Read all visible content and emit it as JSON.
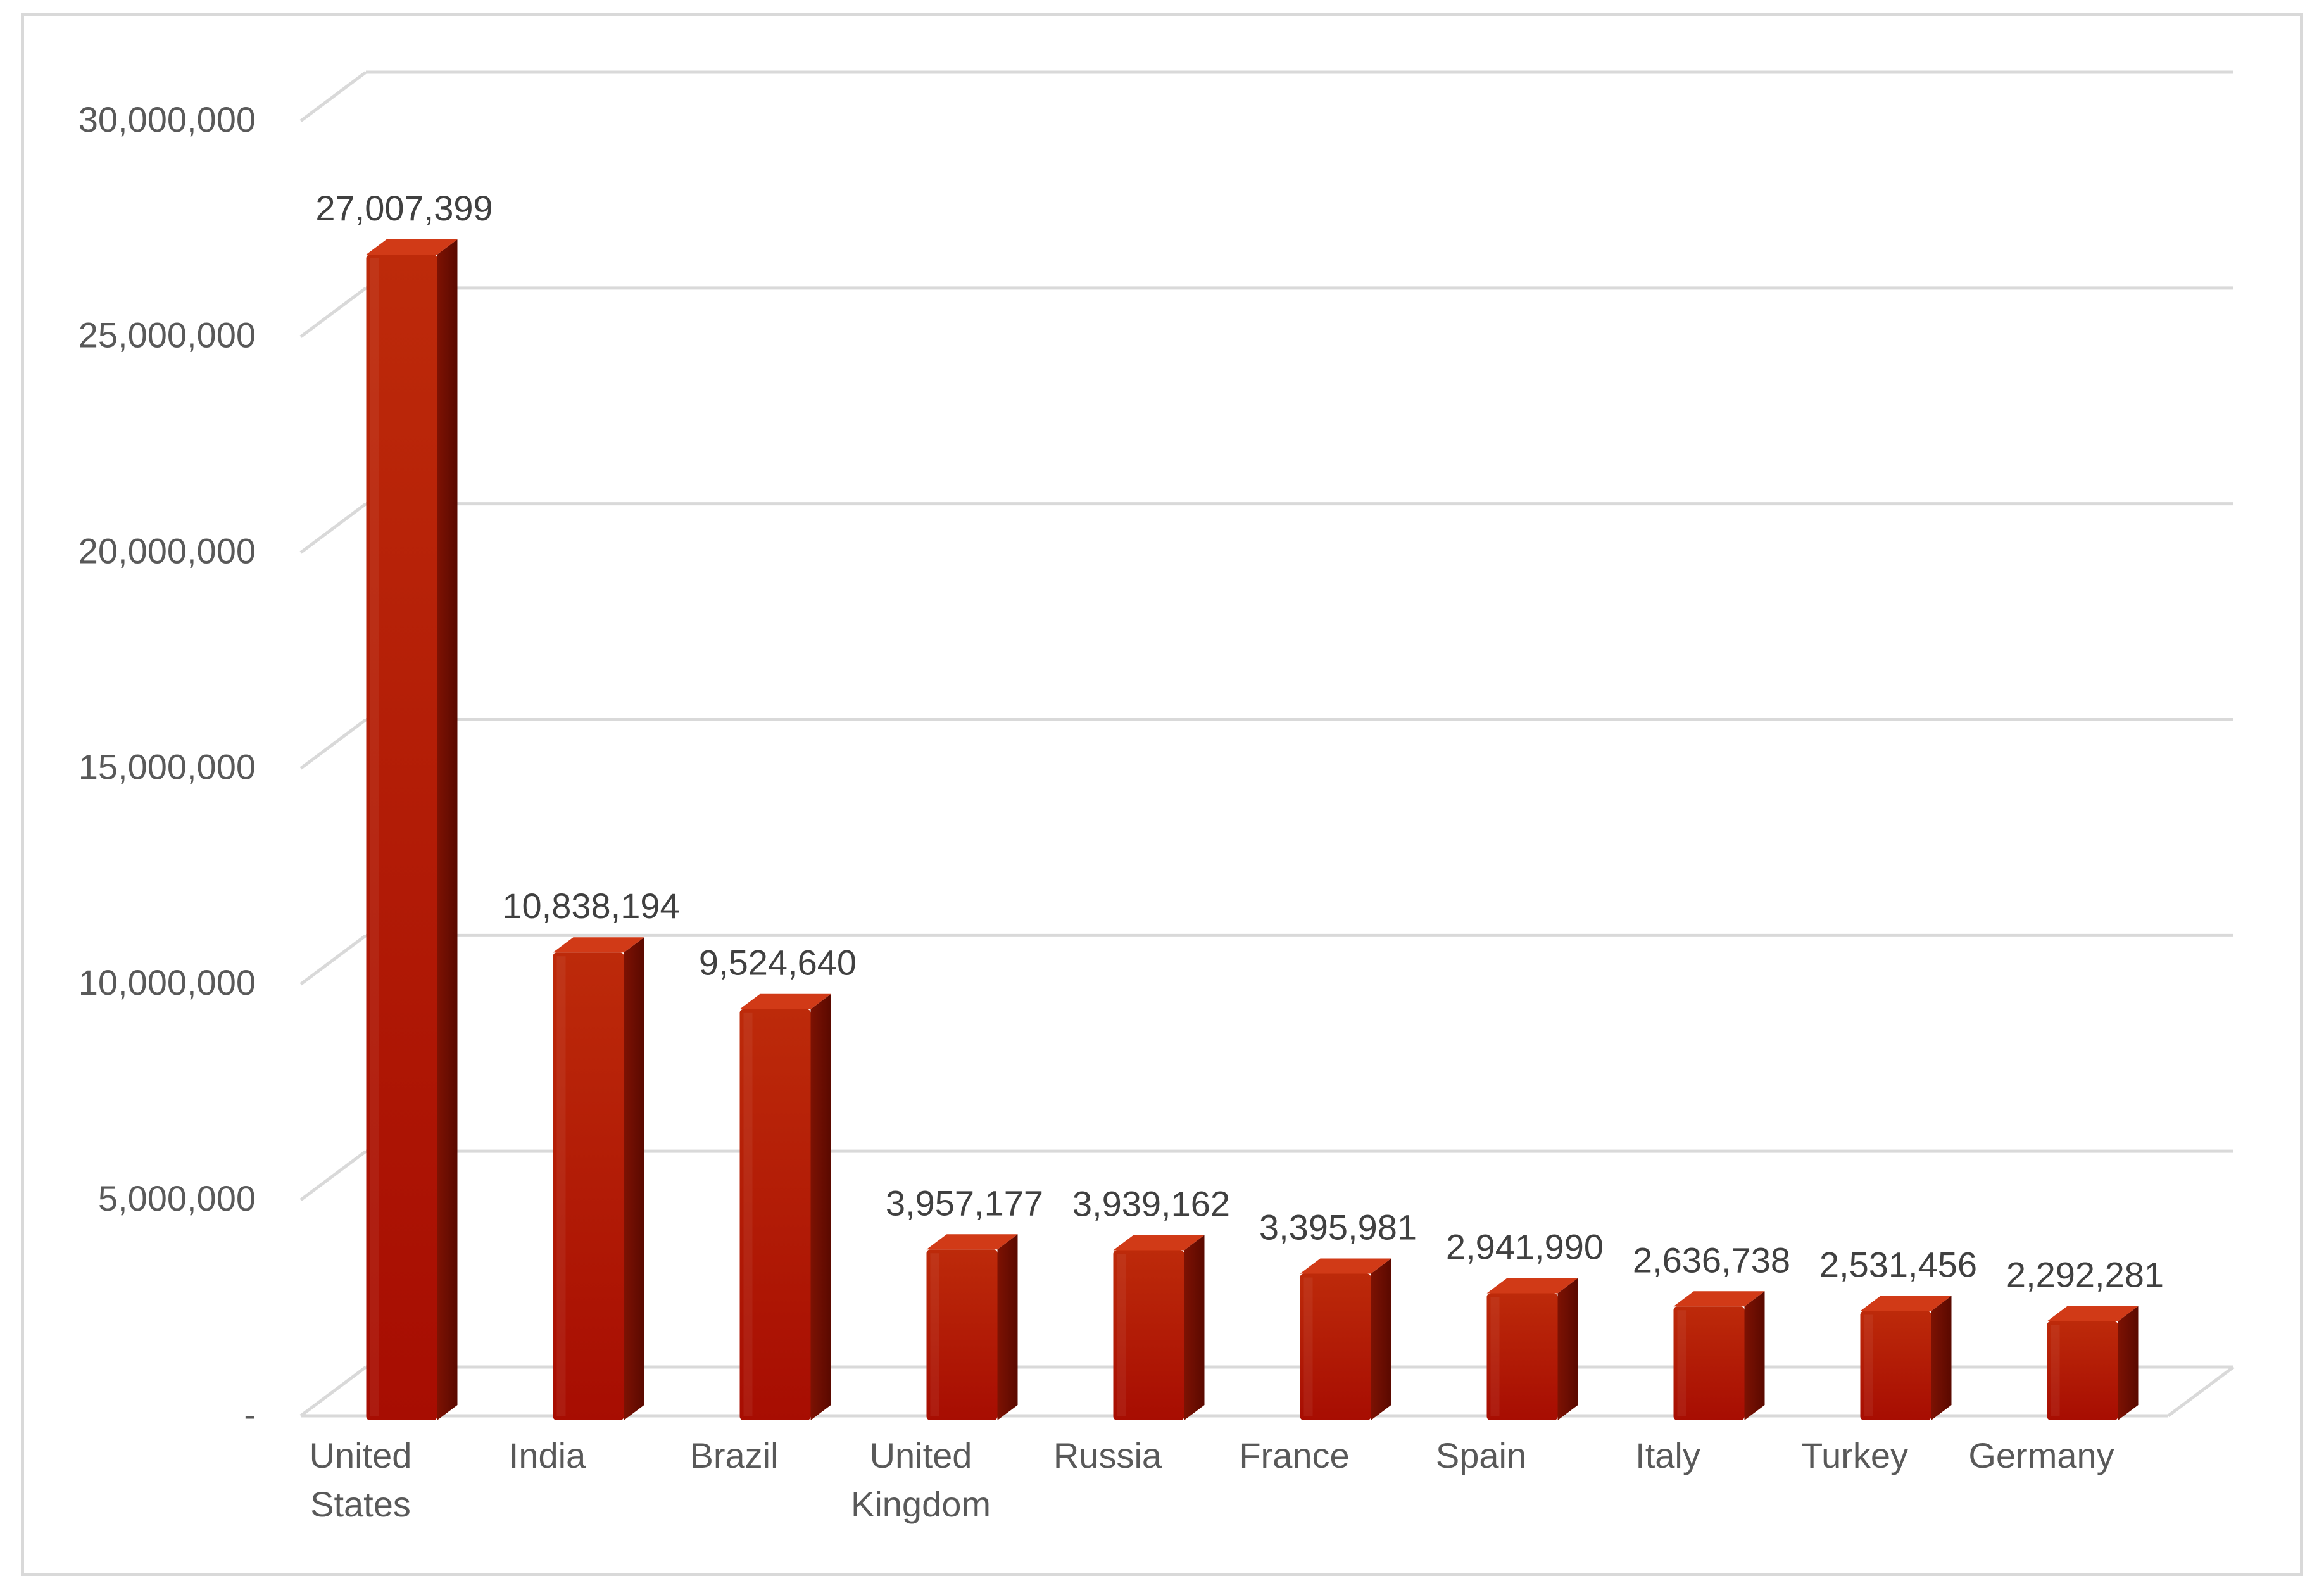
{
  "chart_data": {
    "type": "bar",
    "title": "",
    "xlabel": "",
    "ylabel": "",
    "categories": [
      [
        "United",
        "States"
      ],
      [
        "India"
      ],
      [
        "Brazil"
      ],
      [
        "United",
        "Kingdom"
      ],
      [
        "Russia"
      ],
      [
        "France"
      ],
      [
        "Spain"
      ],
      [
        "Italy"
      ],
      [
        "Turkey"
      ],
      [
        "Germany"
      ]
    ],
    "values": [
      27007399,
      10838194,
      9524640,
      3957177,
      3939162,
      3395981,
      2941990,
      2636738,
      2531456,
      2292281
    ],
    "value_labels": [
      "27,007,399",
      "10,838,194",
      "9,524,640",
      "3,957,177",
      "3,939,162",
      "3,395,981",
      "2,941,990",
      "2,636,738",
      "2,531,456",
      "2,292,281"
    ],
    "ylim": [
      0,
      30000000
    ],
    "y_ticks": [
      0,
      5000000,
      10000000,
      15000000,
      20000000,
      25000000,
      30000000
    ],
    "y_tick_labels": [
      "-",
      "5,000,000",
      "10,000,000",
      "15,000,000",
      "20,000,000",
      "25,000,000",
      "30,000,000"
    ],
    "grid": true,
    "style": "3d-column",
    "bar_color": "#b01e05",
    "bar_top_color": "#d13a17",
    "bar_side_color": "#6e0c00",
    "gridline_color": "#d9d9d9",
    "legend": "none"
  }
}
